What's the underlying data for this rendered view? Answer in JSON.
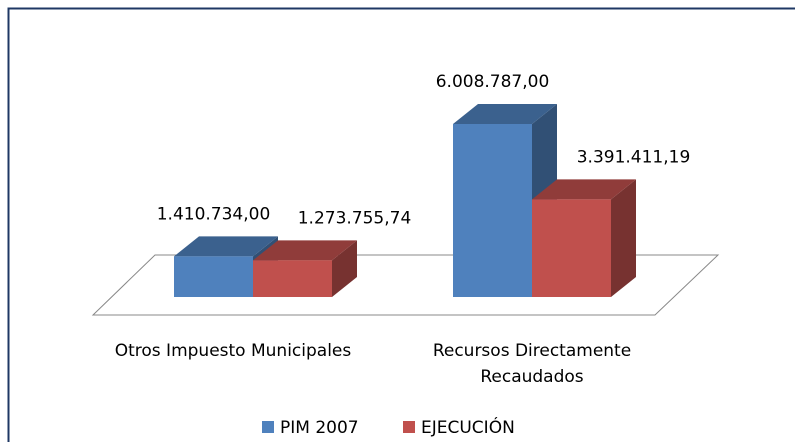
{
  "chart_data": {
    "type": "bar3d",
    "categories": [
      "Otros Impuesto Municipales",
      "Recursos Directamente Recaudados"
    ],
    "series": [
      {
        "name": "PIM 2007",
        "color": "#4f81bd",
        "values": [
          1410734.0,
          6008787.0
        ],
        "value_labels": [
          "1.410.734,00",
          "6.008.787,00"
        ]
      },
      {
        "name": "EJECUCIÓN",
        "color": "#c0504d",
        "values": [
          1273755.74,
          3391411.19
        ],
        "value_labels": [
          "1.273.755,74",
          "3.391.411,19"
        ]
      }
    ],
    "legend": "bottom"
  }
}
